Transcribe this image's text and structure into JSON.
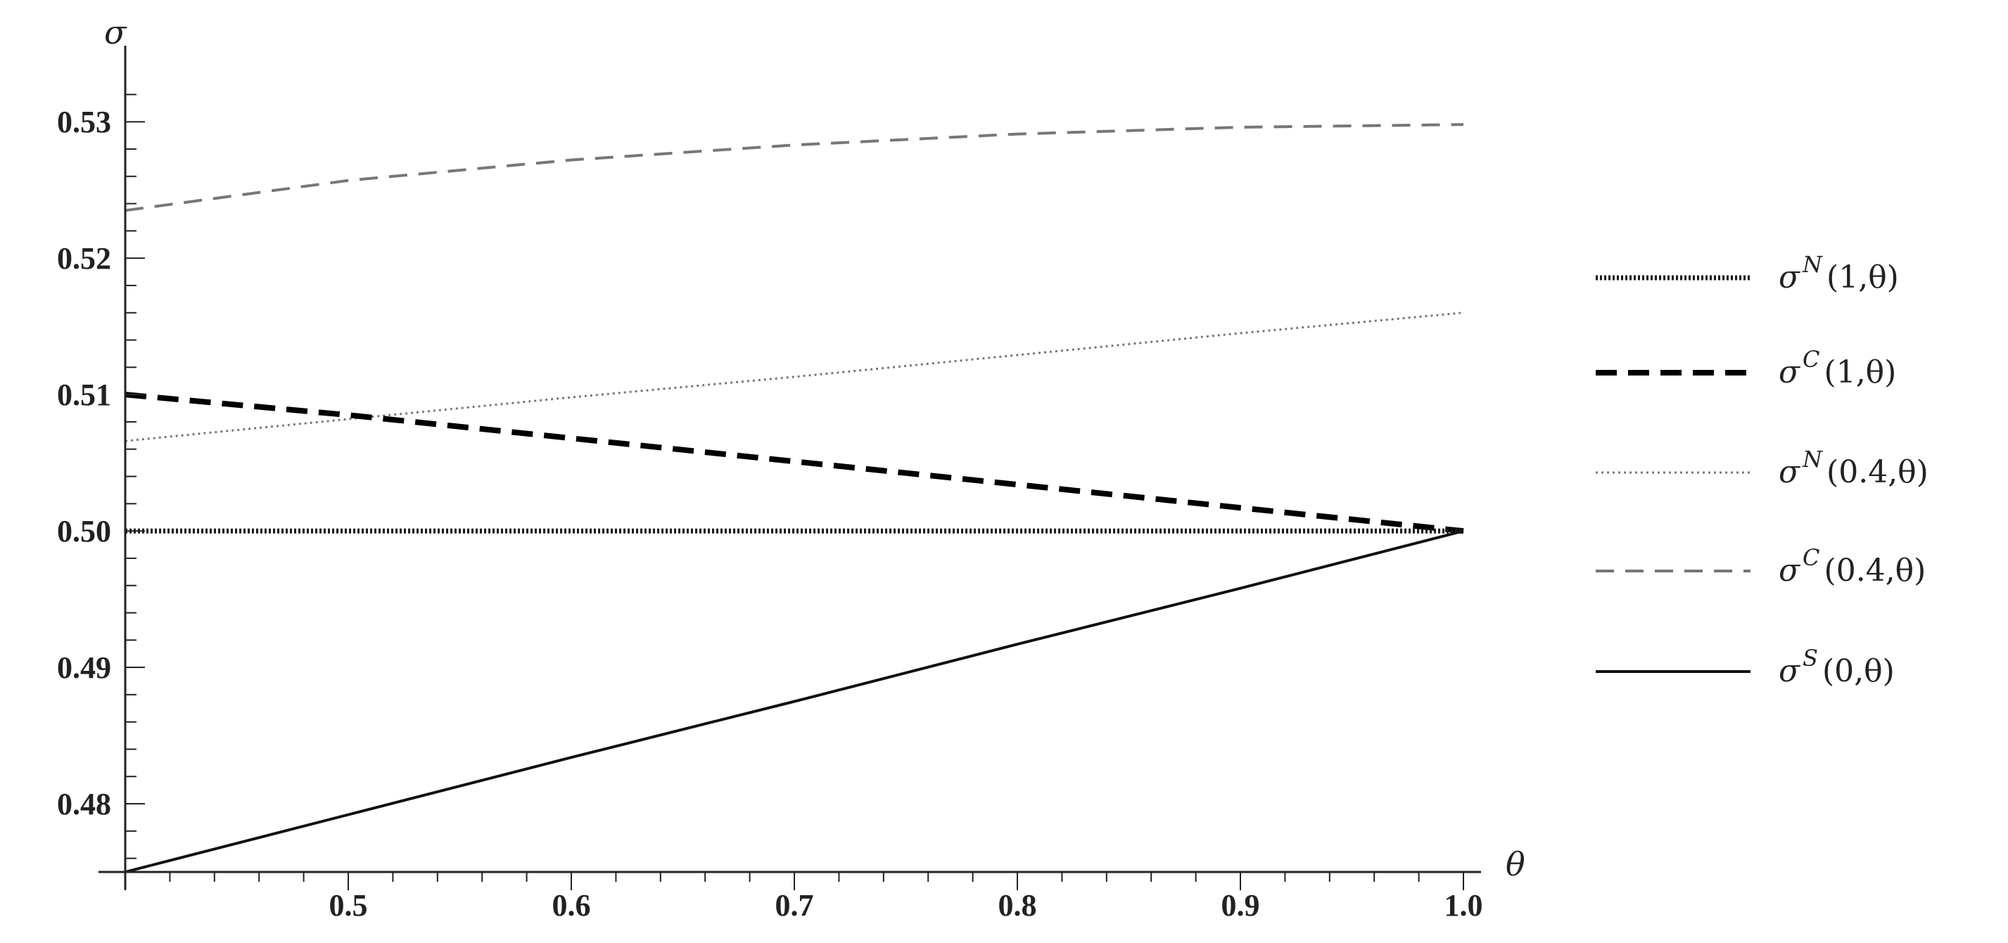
{
  "chart_data": {
    "type": "line",
    "xlabel": "θ",
    "ylabel": "σ",
    "xlim": [
      0.4,
      1.0
    ],
    "ylim": [
      0.475,
      0.533
    ],
    "x_ticks": [
      "0.5",
      "0.6",
      "0.7",
      "0.8",
      "0.9",
      "1.0"
    ],
    "y_ticks": [
      "0.48",
      "0.49",
      "0.50",
      "0.51",
      "0.52",
      "0.53"
    ],
    "grid": false,
    "legend_position": "right",
    "series": [
      {
        "id": "s1",
        "name": "σ^N(1,θ)",
        "legend": {
          "symbol": "σ",
          "sup": "N",
          "args": "(1,θ)"
        },
        "style": "dense-dotted-black",
        "x": [
          0.4,
          1.0
        ],
        "y": [
          0.5,
          0.5
        ]
      },
      {
        "id": "s2",
        "name": "σ^C(1,θ)",
        "legend": {
          "symbol": "σ",
          "sup": "C",
          "args": "(1,θ)"
        },
        "style": "thick-dashed-black",
        "x": [
          0.4,
          0.5,
          0.6,
          0.7,
          0.8,
          0.9,
          1.0
        ],
        "y": [
          0.51,
          0.5085,
          0.5068,
          0.5051,
          0.5034,
          0.5017,
          0.5
        ]
      },
      {
        "id": "s3",
        "name": "σ^N(0.4,θ)",
        "legend": {
          "symbol": "σ",
          "sup": "N",
          "args": "(0.4,θ)"
        },
        "style": "dotted-gray",
        "x": [
          0.4,
          0.5,
          0.6,
          0.7,
          0.8,
          0.9,
          1.0
        ],
        "y": [
          0.5066,
          0.5082,
          0.5098,
          0.5113,
          0.5129,
          0.5145,
          0.516
        ]
      },
      {
        "id": "s4",
        "name": "σ^C(0.4,θ)",
        "legend": {
          "symbol": "σ",
          "sup": "C",
          "args": "(0.4,θ)"
        },
        "style": "dashed-gray",
        "x": [
          0.4,
          0.5,
          0.6,
          0.7,
          0.8,
          0.9,
          1.0
        ],
        "y": [
          0.5235,
          0.5257,
          0.5272,
          0.5283,
          0.5291,
          0.5296,
          0.5298
        ]
      },
      {
        "id": "s5",
        "name": "σ^S(0,θ)",
        "legend": {
          "symbol": "σ",
          "sup": "S",
          "args": "(0,θ)"
        },
        "style": "solid-black",
        "x": [
          0.4,
          0.5,
          0.6,
          0.7,
          0.8,
          0.9,
          1.0
        ],
        "y": [
          0.475,
          0.4792,
          0.4834,
          0.4875,
          0.4917,
          0.4958,
          0.5
        ]
      }
    ]
  }
}
